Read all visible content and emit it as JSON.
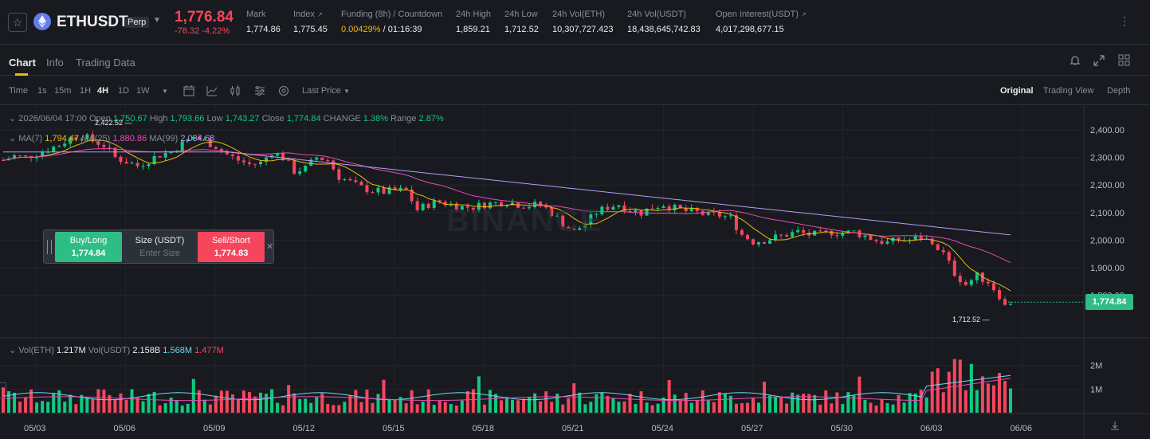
{
  "ticker": {
    "symbol": "ETHUSDT",
    "contract_type": "Perp",
    "last_price": "1,776.84",
    "change": "-78.32 -4.22%",
    "stats": [
      {
        "label": "Mark",
        "value": "1,774.86"
      },
      {
        "label": "Index",
        "value": "1,775.45"
      },
      {
        "label": "Funding (8h) / Countdown",
        "value_highlight": "0.00429%",
        "value": " / 01:16:39"
      },
      {
        "label": "24h High",
        "value": "1,859.21"
      },
      {
        "label": "24h Low",
        "value": "1,712.52"
      },
      {
        "label": "24h Vol(ETH)",
        "value": "10,307,727.423"
      },
      {
        "label": "24h Vol(USDT)",
        "value": "18,438,645,742.83"
      },
      {
        "label": "Open Interest(USDT)",
        "value": "4,017,298,677.15"
      }
    ],
    "index_marker": "↗",
    "oi_marker": "↗",
    "more": "⋮"
  },
  "tabs": [
    "Chart",
    "Info",
    "Trading Data"
  ],
  "toolbar": {
    "time_label": "Time",
    "intervals": [
      "1s",
      "15m",
      "1H",
      "4H",
      "1D",
      "1W"
    ],
    "active_interval": "4H",
    "price_mode": "Last Price",
    "views": [
      "Original",
      "Trading View",
      "Depth"
    ],
    "active_view": "Original"
  },
  "legend": {
    "ohlc": {
      "date": "2026/06/04 17:00",
      "open_label": "Open",
      "open": "1,750.67",
      "high_label": "High",
      "high": "1,793.66",
      "low_label": "Low",
      "low": "1,743.27",
      "close_label": "Close",
      "close": "1,774.84",
      "change_label": "CHANGE",
      "change": "1.38%",
      "range_label": "Range",
      "range": "2.87%"
    },
    "ma": {
      "ma7_label": "MA(7)",
      "ma7": "1,794.47",
      "ma25_label": "MA(25)",
      "ma25": "1,880.86",
      "ma99_label": "MA(99)",
      "ma99": "2,034.68"
    },
    "vol": {
      "vol_label": "Vol(ETH)",
      "vol": "1.217M",
      "volusdt_label": "Vol(USDT)",
      "volusdt": "2.158B",
      "v1": "1.568M",
      "v2": "1.477M"
    }
  },
  "order": {
    "buy_label": "Buy/Long",
    "buy_price": "1,774.84",
    "size_label": "Size (USDT)",
    "size_placeholder": "Enter Size",
    "sell_label": "Sell/Short",
    "sell_price": "1,774.83",
    "close": "✕"
  },
  "watermark": "BINANCE",
  "labels": {
    "current_price": "1,774.84",
    "low_marker": "1,712.52 —",
    "high_marker": "2,422.52 —"
  },
  "colors": {
    "up": "#0ecb81",
    "down": "#f6465d",
    "ma7": "#f0b90b",
    "ma25": "#e64bb4",
    "ma99": "#b09cf5"
  },
  "chart_data": {
    "type": "candlestick",
    "interval": "4H",
    "price_axis": {
      "ticks": [
        2400,
        2300,
        2200,
        2100,
        2000,
        1900,
        1800
      ],
      "labels": [
        "2,400.00",
        "2,300.00",
        "2,200.00",
        "2,100.00",
        "2,000.00",
        "1,900.00",
        "1,800.00"
      ]
    },
    "volume_axis": {
      "ticks": [
        2000000,
        1000000
      ],
      "labels": [
        "2M",
        "1M"
      ]
    },
    "x_labels": [
      "05/03",
      "05/06",
      "05/09",
      "05/12",
      "05/15",
      "05/18",
      "05/21",
      "05/24",
      "05/27",
      "05/30",
      "06/03",
      "06/06"
    ],
    "close_path": [
      [
        0,
        2290
      ],
      [
        2,
        2305
      ],
      [
        4,
        2300
      ],
      [
        6,
        2315
      ],
      [
        8,
        2330
      ],
      [
        10,
        2345
      ],
      [
        12,
        2370
      ],
      [
        14,
        2380
      ],
      [
        16,
        2360
      ],
      [
        18,
        2345
      ],
      [
        20,
        2300
      ],
      [
        22,
        2285
      ],
      [
        24,
        2270
      ],
      [
        26,
        2290
      ],
      [
        28,
        2310
      ],
      [
        30,
        2320
      ],
      [
        32,
        2350
      ],
      [
        34,
        2375
      ],
      [
        36,
        2360
      ],
      [
        38,
        2340
      ],
      [
        40,
        2310
      ],
      [
        42,
        2290
      ],
      [
        44,
        2275
      ],
      [
        46,
        2280
      ],
      [
        48,
        2320
      ],
      [
        50,
        2300
      ],
      [
        52,
        2250
      ],
      [
        54,
        2260
      ],
      [
        56,
        2300
      ],
      [
        58,
        2290
      ],
      [
        60,
        2230
      ],
      [
        62,
        2210
      ],
      [
        64,
        2190
      ],
      [
        66,
        2180
      ],
      [
        68,
        2175
      ],
      [
        70,
        2180
      ],
      [
        72,
        2180
      ],
      [
        74,
        2110
      ],
      [
        76,
        2130
      ],
      [
        78,
        2140
      ],
      [
        80,
        2130
      ],
      [
        82,
        2120
      ],
      [
        84,
        2120
      ],
      [
        86,
        2130
      ],
      [
        88,
        2135
      ],
      [
        90,
        2140
      ],
      [
        92,
        2130
      ],
      [
        94,
        2125
      ],
      [
        96,
        2130
      ],
      [
        98,
        2100
      ],
      [
        100,
        2060
      ],
      [
        102,
        2030
      ],
      [
        104,
        2060
      ],
      [
        106,
        2100
      ],
      [
        108,
        2120
      ],
      [
        110,
        2130
      ],
      [
        112,
        2110
      ],
      [
        114,
        2100
      ],
      [
        116,
        2120
      ],
      [
        118,
        2130
      ],
      [
        120,
        2115
      ],
      [
        122,
        2105
      ],
      [
        124,
        2100
      ],
      [
        126,
        2090
      ],
      [
        128,
        2090
      ],
      [
        130,
        2080
      ],
      [
        132,
        2020
      ],
      [
        134,
        1995
      ],
      [
        136,
        2000
      ],
      [
        138,
        2010
      ],
      [
        140,
        2020
      ],
      [
        142,
        2030
      ],
      [
        144,
        2020
      ],
      [
        146,
        2020
      ],
      [
        148,
        2030
      ],
      [
        150,
        2025
      ],
      [
        152,
        2030
      ],
      [
        154,
        2015
      ],
      [
        156,
        2000
      ],
      [
        158,
        1990
      ],
      [
        160,
        2000
      ],
      [
        162,
        2000
      ],
      [
        164,
        2010
      ],
      [
        166,
        1990
      ],
      [
        168,
        1950
      ],
      [
        170,
        1880
      ],
      [
        172,
        1840
      ],
      [
        174,
        1870
      ],
      [
        176,
        1850
      ],
      [
        178,
        1800
      ],
      [
        179,
        1760
      ],
      [
        180,
        1775
      ]
    ],
    "low": 1712.52,
    "high": 2422.52,
    "last_close": 1774.84
  }
}
